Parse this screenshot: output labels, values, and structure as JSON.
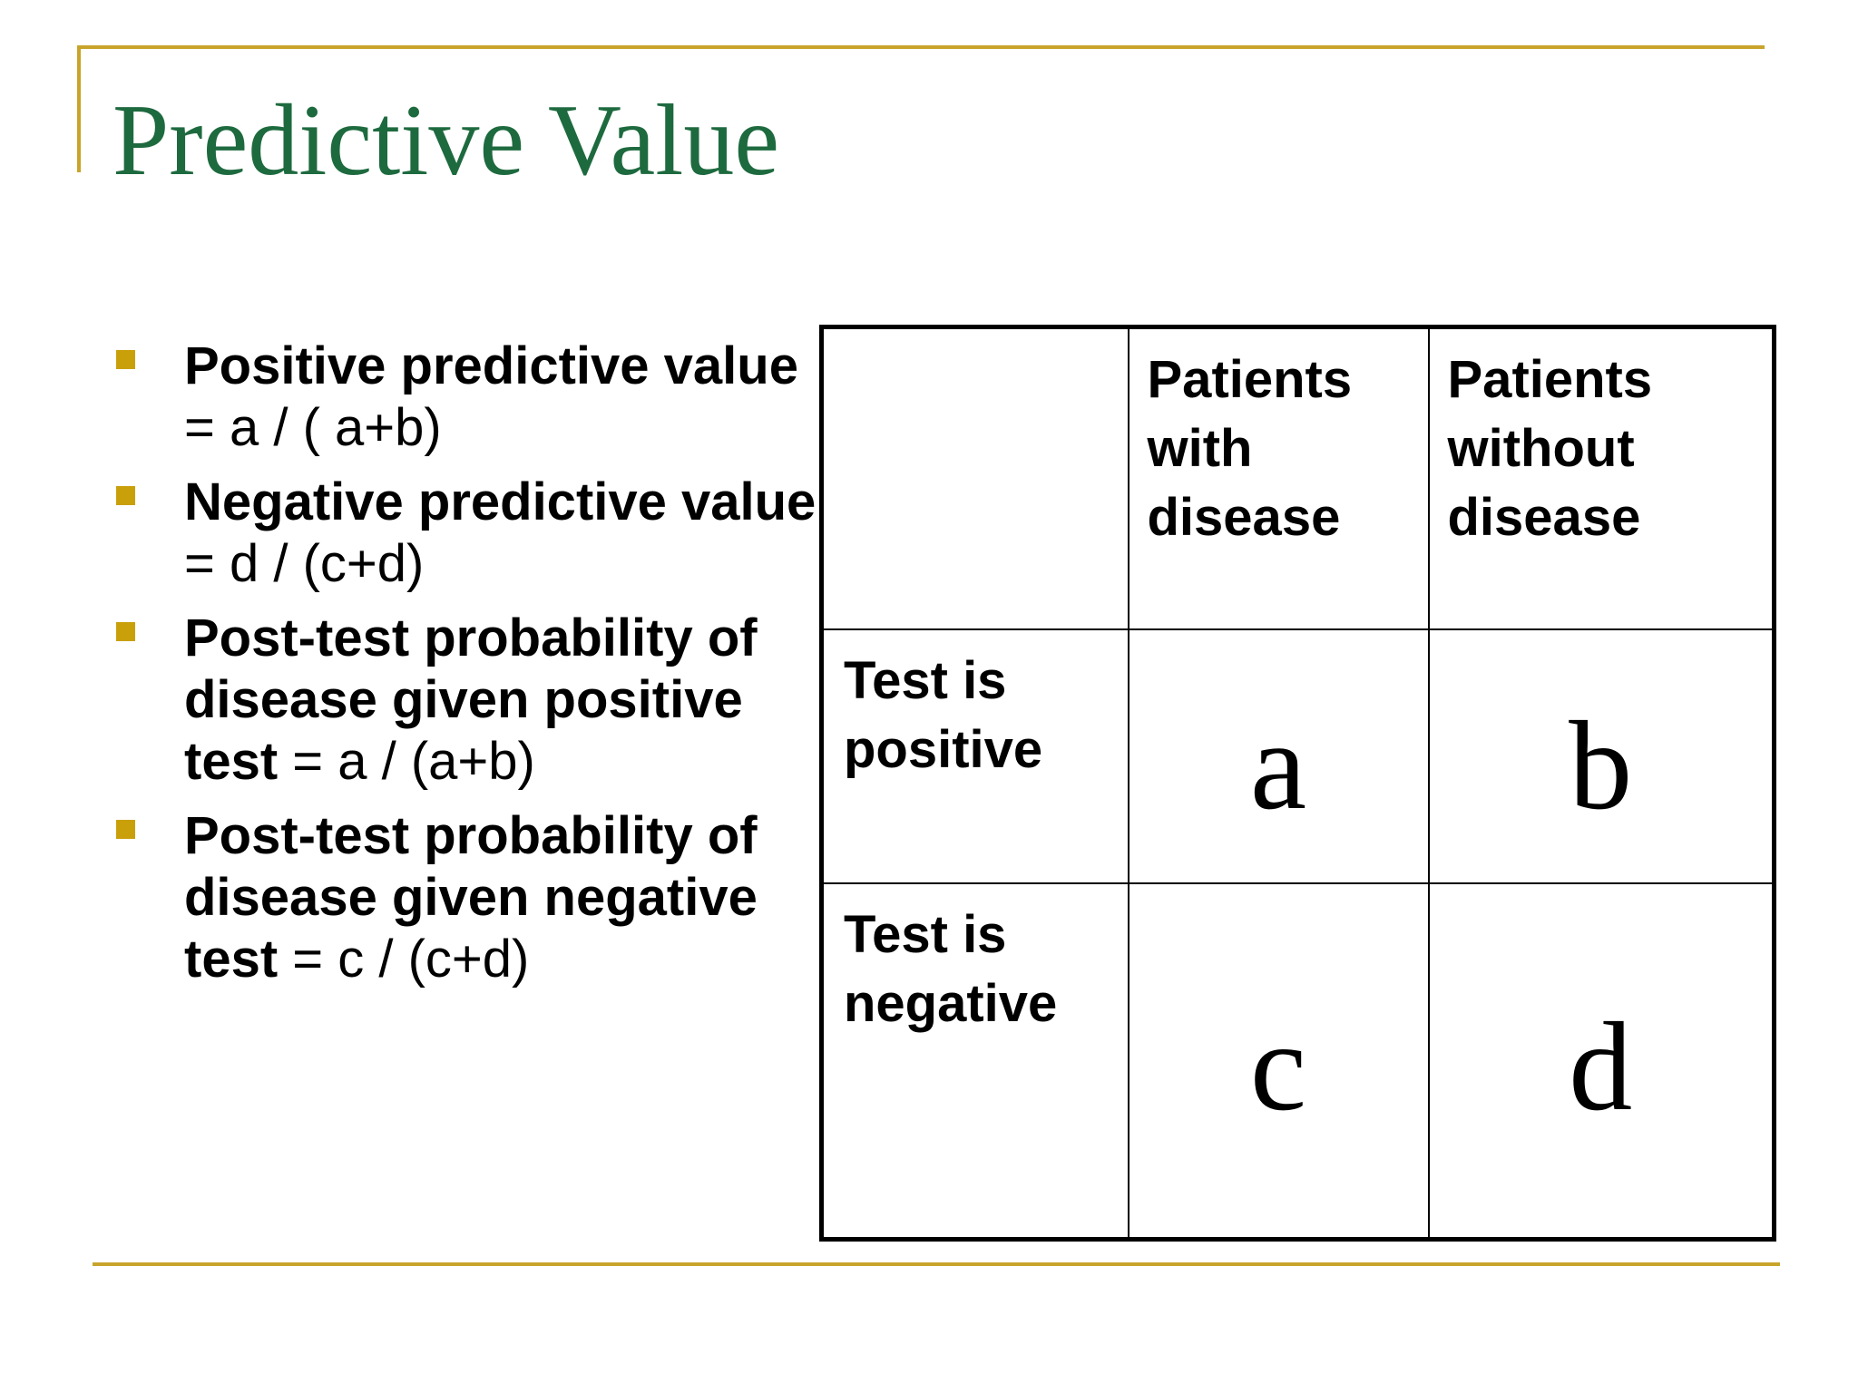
{
  "slide": {
    "title": "Predictive Value",
    "colors": {
      "title": "#1e6a3f",
      "accent_rule": "#c9a42b",
      "bullet": "#c9a00a",
      "text": "#000000"
    }
  },
  "bullets": [
    {
      "head": "Positive predictive value",
      "rest": " = a / ( a+b)"
    },
    {
      "head": "Negative predictive value",
      "rest": " = d / (c+d)"
    },
    {
      "head": "Post-test probability of disease given positive test",
      "rest": " = a / (a+b)"
    },
    {
      "head": "Post-test probability of disease given negative test",
      "rest": " = c / (c+d)"
    }
  ],
  "table": {
    "columns": [
      "",
      "Patients with disease",
      "Patients without disease"
    ],
    "rows": [
      {
        "label": "Test is positive",
        "cells": [
          "a",
          "b"
        ]
      },
      {
        "label": "Test is negative",
        "cells": [
          "c",
          "d"
        ]
      }
    ]
  }
}
